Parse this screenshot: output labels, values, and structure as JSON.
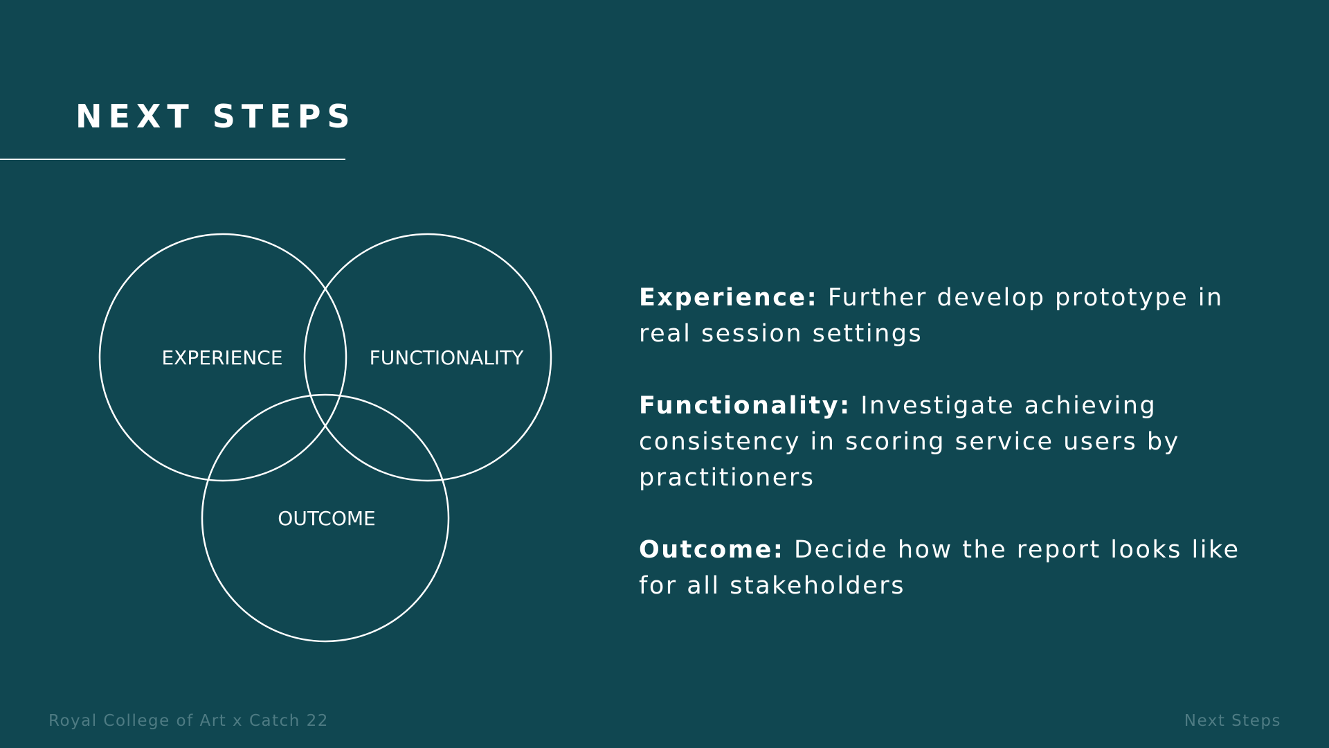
{
  "slide": {
    "title": "NEXT STEPS"
  },
  "diagram": {
    "circles": [
      {
        "label": "EXPERIENCE"
      },
      {
        "label": "FUNCTIONALITY"
      },
      {
        "label": "OUTCOME"
      }
    ]
  },
  "points": [
    {
      "label": "Experience:",
      "text": "Further develop prototype in real session settings"
    },
    {
      "label": "Functionality:",
      "text": "Investigate achieving consistency in scoring service users by practitioners"
    },
    {
      "label": "Outcome:",
      "text": "Decide how the report looks like for all stakeholders"
    }
  ],
  "footer": {
    "left": "Royal College of Art x Catch 22",
    "right": "Next Steps"
  },
  "colors": {
    "background": "#104751",
    "text": "#ffffff",
    "footer_text": "#4e7b83"
  }
}
